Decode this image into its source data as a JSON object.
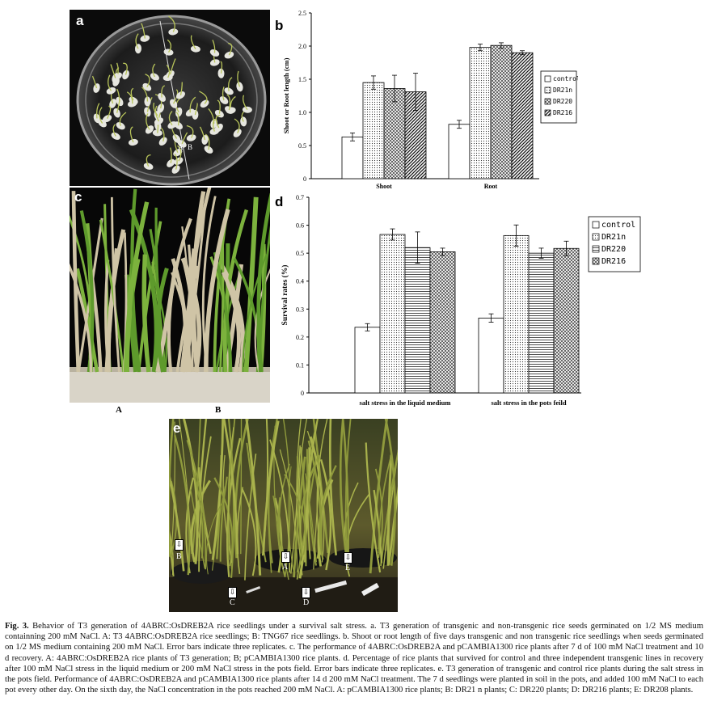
{
  "figure": {
    "panels": {
      "a": {
        "letter": "a",
        "labels": [
          "A",
          "B"
        ]
      },
      "b": {
        "letter": "b"
      },
      "c": {
        "letter": "c",
        "labels": [
          "A",
          "B"
        ]
      },
      "d": {
        "letter": "d"
      },
      "e": {
        "letter": "e",
        "labels": [
          "B",
          "A",
          "E",
          "C",
          "D"
        ]
      }
    },
    "caption": {
      "label": "Fig. 3.",
      "text": "Behavior of T3 generation of 4ABRC:OsDREB2A rice seedlings under a survival salt stress. a. T3 generation of transgenic and non-transgenic rice seeds germinated on 1/2 MS medium containning 200 mM NaCl. A: T3 4ABRC:OsDREB2A rice seedlings; B: TNG67 rice seedlings. b. Shoot or root length of five days transgenic and non transgenic rice seedlings when seeds germinated on 1/2 MS medium containing 200 mM NaCl. Error bars indicate three replicates. c. The performance of 4ABRC:OsDREB2A and pCAMBIA1300 rice plants after 7 d of 100 mM NaCl treatment and 10 d recovery. A: 4ABRC:OsDREB2A rice plants of T3 generation; B; pCAMBIA1300 rice plants. d. Percentage of rice plants that survived for control and three independent transgenic lines in recovery after 100 mM NaCl stress in the liquid medium or 200 mM NaCl stress in the pots field. Error bars indicate three replicates. e. T3 generation of transgenic and control rice plants during the salt stress in the pots field. Performance of 4ABRC:OsDREB2A and pCAMBIA1300 rice plants after 14 d 200 mM NaCl treatment. The 7 d seedlings were planted in soil in the pots, and added 100 mM NaCl to each pot every other day. On the sixth day, the NaCl concentration in the pots reached 200 mM NaCl. A: pCAMBIA1300 rice plants; B: DR21 n plants; C: DR220 plants; D: DR216 plants; E: DR208 plants."
    }
  },
  "chart_data": [
    {
      "type": "bar",
      "panel": "b",
      "ylabel": "Shoot or Root length (cm)",
      "categories": [
        "Shoot",
        "Root"
      ],
      "ylim": [
        0,
        2.5
      ],
      "yticks": [
        "0",
        "0.5",
        "1.0",
        "1.5",
        "2.0",
        "2.5"
      ],
      "legend_position": "right",
      "series": [
        {
          "name": "control",
          "values": [
            0.63,
            0.82
          ],
          "errors": [
            0.06,
            0.06
          ],
          "pattern": "empty"
        },
        {
          "name": "DR21n",
          "values": [
            1.45,
            1.98
          ],
          "errors": [
            0.1,
            0.05
          ],
          "pattern": "dots"
        },
        {
          "name": "DR220",
          "values": [
            1.36,
            2.01
          ],
          "errors": [
            0.2,
            0.04
          ],
          "pattern": "cross"
        },
        {
          "name": "DR216",
          "values": [
            1.31,
            1.9
          ],
          "errors": [
            0.28,
            0.03
          ],
          "pattern": "diag"
        }
      ]
    },
    {
      "type": "bar",
      "panel": "d",
      "ylabel": "Survival rates (%)",
      "categories": [
        "salt stress in the liquid medium",
        "salt stress in the pots feild"
      ],
      "ylim": [
        0,
        0.7
      ],
      "yticks": [
        "0",
        "0.1",
        "0.2",
        "0.3",
        "0.4",
        "0.5",
        "0.6",
        "0.7"
      ],
      "legend_position": "right",
      "series": [
        {
          "name": "control",
          "values": [
            0.235,
            0.268
          ],
          "errors": [
            0.013,
            0.015
          ],
          "pattern": "empty"
        },
        {
          "name": "DR21n",
          "values": [
            0.567,
            0.563
          ],
          "errors": [
            0.02,
            0.038
          ],
          "pattern": "dots"
        },
        {
          "name": "DR220",
          "values": [
            0.52,
            0.5
          ],
          "errors": [
            0.056,
            0.018
          ],
          "pattern": "horiz"
        },
        {
          "name": "DR216",
          "values": [
            0.505,
            0.517
          ],
          "errors": [
            0.013,
            0.026
          ],
          "pattern": "cross"
        }
      ]
    }
  ]
}
